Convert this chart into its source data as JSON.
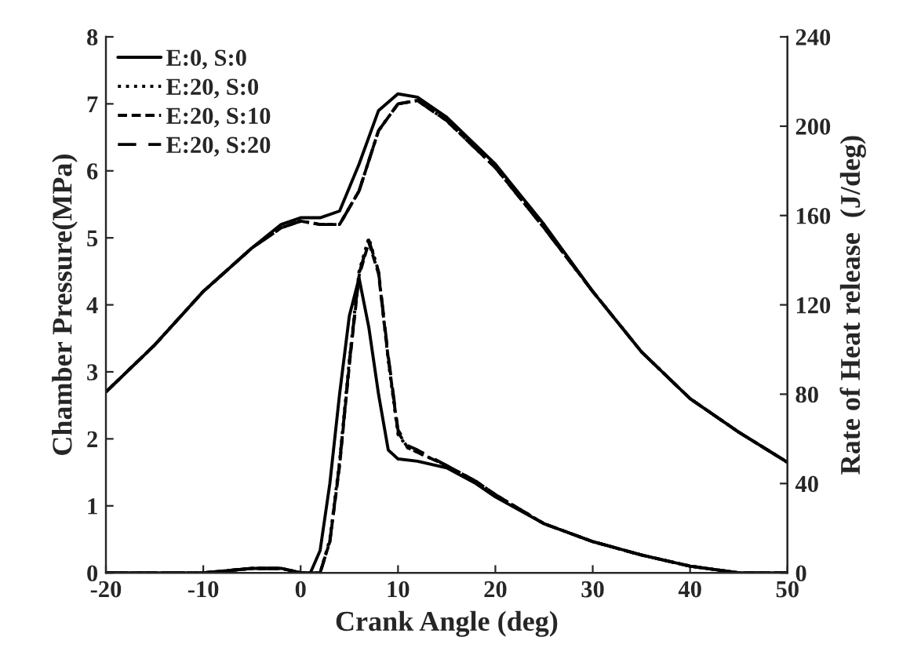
{
  "chart_data": {
    "type": "line",
    "xlabel": "Crank Angle (deg)",
    "ylabel": "Chamber Pressure(MPa)",
    "y2label": "Rate of Heat release  (J/deg)",
    "xlim": [
      -20,
      50
    ],
    "xticks": [
      -20,
      -10,
      0,
      10,
      20,
      30,
      40,
      50
    ],
    "ylim": [
      0,
      8
    ],
    "yticks": [
      0,
      1,
      2,
      3,
      4,
      5,
      6,
      7,
      8
    ],
    "y2lim": [
      0,
      240
    ],
    "y2ticks": [
      0,
      40,
      80,
      120,
      160,
      200,
      240
    ],
    "legend": "top left",
    "grid": false,
    "marker": "none",
    "series": [
      {
        "name": "E:0, S:0",
        "color": "#000000",
        "line_style": "solid",
        "x": [
          -20,
          -15,
          -10,
          -5,
          -2,
          0,
          2,
          4,
          6,
          8,
          10,
          12,
          15,
          20,
          25,
          30,
          35,
          40,
          45,
          50
        ],
        "values": [
          2.7,
          3.4,
          4.2,
          4.85,
          5.2,
          5.3,
          5.3,
          5.4,
          6.1,
          6.9,
          7.15,
          7.1,
          6.8,
          6.1,
          5.2,
          4.2,
          3.3,
          2.6,
          2.1,
          1.65
        ]
      },
      {
        "name": "E:20, S:0",
        "color": "#000000",
        "line_style": "dotted",
        "x": [
          -20,
          -15,
          -10,
          -5,
          -2,
          0,
          2,
          4,
          6,
          8,
          10,
          12,
          15,
          20,
          25,
          30,
          35,
          40,
          45,
          50
        ],
        "values": [
          2.7,
          3.4,
          4.2,
          4.85,
          5.15,
          5.25,
          5.2,
          5.2,
          5.7,
          6.6,
          7.0,
          7.05,
          6.75,
          6.05,
          5.15,
          4.2,
          3.3,
          2.6,
          2.1,
          1.65
        ]
      },
      {
        "name": "E:20, S:10",
        "color": "#000000",
        "line_style": "dashdot",
        "x": [
          -20,
          -15,
          -10,
          -5,
          -2,
          0,
          2,
          4,
          6,
          8,
          10,
          12,
          15,
          20,
          25,
          30,
          35,
          40,
          45,
          50
        ],
        "values": [
          2.7,
          3.4,
          4.2,
          4.85,
          5.15,
          5.25,
          5.2,
          5.2,
          5.7,
          6.6,
          7.0,
          7.05,
          6.75,
          6.05,
          5.15,
          4.2,
          3.3,
          2.6,
          2.1,
          1.65
        ]
      },
      {
        "name": "E:20, S:20",
        "color": "#000000",
        "line_style": "dashed",
        "x": [
          -20,
          -15,
          -10,
          -5,
          -2,
          0,
          2,
          4,
          6,
          8,
          10,
          12,
          15,
          20,
          25,
          30,
          35,
          40,
          45,
          50
        ],
        "values": [
          2.7,
          3.4,
          4.2,
          4.85,
          5.15,
          5.25,
          5.2,
          5.2,
          5.7,
          6.6,
          7.0,
          7.05,
          6.75,
          6.05,
          5.15,
          4.2,
          3.3,
          2.6,
          2.1,
          1.65
        ]
      },
      {
        "color": "#000000",
        "axis": "y2",
        "line_style": "solid",
        "x": [
          -20,
          -10,
          -5,
          -2,
          0,
          1,
          2,
          3,
          4,
          5,
          6,
          7,
          8,
          9,
          10,
          12,
          15,
          18,
          20,
          25,
          30,
          35,
          40,
          45,
          50
        ],
        "values": [
          0,
          0,
          2,
          2,
          0,
          0,
          10,
          40,
          80,
          115,
          132,
          110,
          80,
          55,
          51,
          50,
          47,
          40,
          34,
          22,
          14,
          8,
          3,
          0,
          0
        ]
      },
      {
        "color": "#000000",
        "axis": "y2",
        "line_style": "dotted",
        "x": [
          -20,
          -10,
          -5,
          -2,
          0,
          1,
          2,
          3,
          4,
          5,
          6,
          7,
          8,
          9,
          10,
          11,
          12,
          15,
          18,
          20,
          25,
          30,
          35,
          40,
          45,
          50
        ],
        "values": [
          0,
          0,
          2,
          2,
          0,
          0,
          0,
          15,
          50,
          95,
          135,
          150,
          135,
          95,
          62,
          56,
          54,
          48,
          41,
          35,
          22,
          14,
          8,
          3,
          0,
          0
        ]
      },
      {
        "color": "#000000",
        "axis": "y2",
        "line_style": "dashdot",
        "x": [
          -20,
          -10,
          -5,
          -2,
          0,
          1,
          2,
          3,
          4,
          5,
          6,
          7,
          8,
          9,
          10,
          11,
          12,
          15,
          18,
          20,
          25,
          30,
          35,
          40,
          45,
          50
        ],
        "values": [
          0,
          0,
          2,
          2,
          0,
          0,
          0,
          14,
          48,
          93,
          133,
          148,
          134,
          96,
          63,
          56,
          54,
          48,
          41,
          35,
          22,
          14,
          8,
          3,
          0,
          0
        ]
      },
      {
        "color": "#000000",
        "axis": "y2",
        "line_style": "dashed",
        "x": [
          -20,
          -10,
          -5,
          -2,
          0,
          1,
          2,
          3,
          4,
          5,
          6,
          7,
          8,
          9,
          10,
          11,
          12,
          15,
          18,
          20,
          25,
          30,
          35,
          40,
          45,
          50
        ],
        "values": [
          0,
          0,
          2,
          2,
          0,
          0,
          0,
          14,
          49,
          94,
          134,
          149,
          135,
          97,
          64,
          57,
          55,
          48,
          41,
          35,
          22,
          14,
          8,
          3,
          0,
          0
        ]
      }
    ]
  }
}
